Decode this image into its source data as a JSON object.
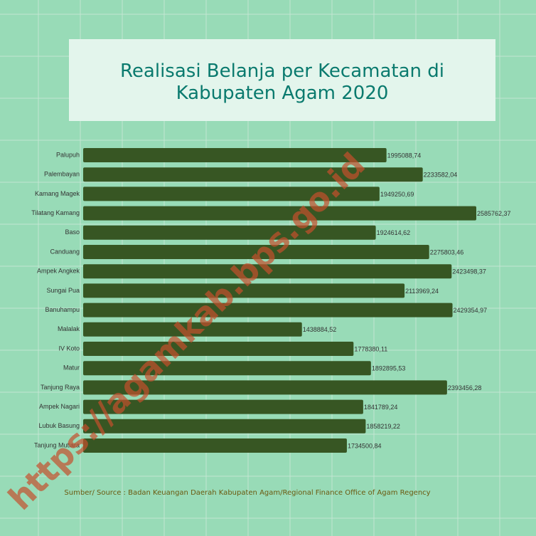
{
  "chart_data": {
    "type": "bar",
    "orientation": "horizontal",
    "title": "Realisasi Belanja per Kecamatan di Kabupaten Agam 2020",
    "categories": [
      "Palupuh",
      "Palembayan",
      "Kamang Magek",
      "Tilatang Kamang",
      "Baso",
      "Canduang",
      "Ampek Angkek",
      "Sungai Pua",
      "Banuhampu",
      "Malalak",
      "IV Koto",
      "Matur",
      "Tanjung Raya",
      "Ampek Nagari",
      "Lubuk Basung",
      "Tanjung Mutiara"
    ],
    "values": [
      1995088.74,
      2233582.04,
      1949250.69,
      2585762.37,
      1924614.62,
      2275803.46,
      2423498.37,
      2113969.24,
      2429354.97,
      1438884.52,
      1778380.11,
      1892895.53,
      2393456.28,
      1841789.24,
      1858219.22,
      1734500.84
    ],
    "value_labels": [
      "1995088,74",
      "2233582,04",
      "1949250,69",
      "2585762,37",
      "1924614,62",
      "2275803,46",
      "2423498,37",
      "2113969,24",
      "2429354,97",
      "1438884,52",
      "1778380,11",
      "1892895,53",
      "2393456,28",
      "1841789,24",
      "1858219,22",
      "1734500,84"
    ],
    "color": "#375623",
    "source": "Sumber/ Source : Badan Keuangan Daerah Kabupaten Agam/Regional Finance Office of Agam Regency",
    "watermark": "https://agamkab.bps.go.id"
  }
}
